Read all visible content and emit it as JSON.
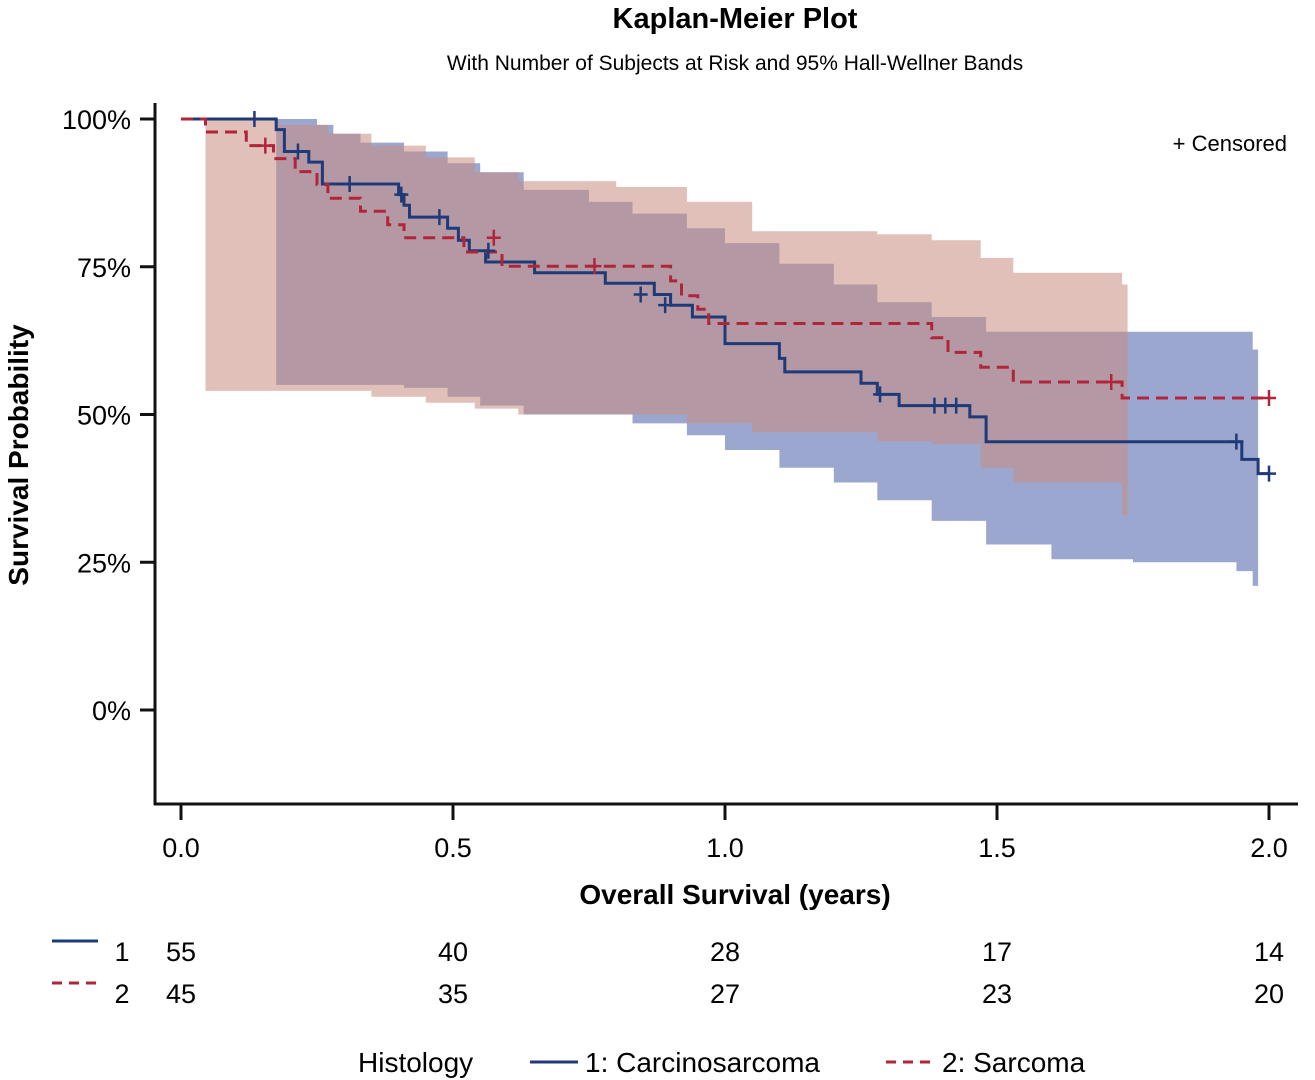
{
  "chart_data": {
    "type": "line",
    "title": "Kaplan-Meier Plot",
    "subtitle": "With Number of Subjects at Risk and 95% Hall-Wellner Bands",
    "xlabel": "Overall Survival (years)",
    "ylabel": "Survival Probability",
    "xlim": [
      -0.05,
      2.05
    ],
    "ylim": [
      -0.16,
      1.03
    ],
    "x_ticks": [
      {
        "value": 0.0,
        "label": "0.0"
      },
      {
        "value": 0.5,
        "label": "0.5"
      },
      {
        "value": 1.0,
        "label": "1.0"
      },
      {
        "value": 1.5,
        "label": "1.5"
      },
      {
        "value": 2.0,
        "label": "2.0"
      }
    ],
    "y_ticks": [
      {
        "value": 1.0,
        "label": "100%"
      },
      {
        "value": 0.75,
        "label": "75%"
      },
      {
        "value": 0.5,
        "label": "50%"
      },
      {
        "value": 0.25,
        "label": "25%"
      },
      {
        "value": 0.0,
        "label": "0%"
      }
    ],
    "censor_note": "+ Censored",
    "legend_title": "Histology",
    "series": [
      {
        "key": "1",
        "name": "1: Carcinosarcoma",
        "color": "#1f3a78",
        "dash": "solid",
        "band_color": "#4a5ea8",
        "steps": [
          [
            0,
            1.0
          ],
          [
            0.175,
            0.982
          ],
          [
            0.19,
            0.945
          ],
          [
            0.235,
            0.927
          ],
          [
            0.26,
            0.89
          ],
          [
            0.4,
            0.872
          ],
          [
            0.41,
            0.854
          ],
          [
            0.42,
            0.834
          ],
          [
            0.49,
            0.815
          ],
          [
            0.51,
            0.795
          ],
          [
            0.53,
            0.777
          ],
          [
            0.56,
            0.758
          ],
          [
            0.65,
            0.74
          ],
          [
            0.78,
            0.722
          ],
          [
            0.87,
            0.703
          ],
          [
            0.9,
            0.685
          ],
          [
            0.94,
            0.665
          ],
          [
            1.0,
            0.642
          ],
          [
            1.0,
            0.62
          ],
          [
            1.1,
            0.595
          ],
          [
            1.11,
            0.572
          ],
          [
            1.25,
            0.553
          ],
          [
            1.28,
            0.534
          ],
          [
            1.32,
            0.515
          ],
          [
            1.45,
            0.496
          ],
          [
            1.48,
            0.454
          ],
          [
            1.95,
            0.424
          ],
          [
            1.98,
            0.4
          ],
          [
            2.0,
            0.4
          ]
        ],
        "censored": [
          [
            0.135,
            1.0
          ],
          [
            0.215,
            0.945
          ],
          [
            0.31,
            0.89
          ],
          [
            0.405,
            0.872
          ],
          [
            0.475,
            0.834
          ],
          [
            0.565,
            0.777
          ],
          [
            0.845,
            0.703
          ],
          [
            0.89,
            0.685
          ],
          [
            1.285,
            0.534
          ],
          [
            1.385,
            0.515
          ],
          [
            1.405,
            0.515
          ],
          [
            1.425,
            0.515
          ],
          [
            1.94,
            0.454
          ],
          [
            2.0,
            0.4
          ]
        ],
        "band": [
          [
            0,
            1.0,
            1.0
          ],
          [
            0.175,
            0.55,
            1.0
          ],
          [
            0.2,
            0.55,
            1.0
          ],
          [
            0.25,
            0.55,
            0.99
          ],
          [
            0.28,
            0.55,
            0.975
          ],
          [
            0.33,
            0.55,
            0.96
          ],
          [
            0.41,
            0.545,
            0.945
          ],
          [
            0.49,
            0.53,
            0.925
          ],
          [
            0.55,
            0.515,
            0.91
          ],
          [
            0.63,
            0.5,
            0.88
          ],
          [
            0.75,
            0.5,
            0.86
          ],
          [
            0.83,
            0.485,
            0.84
          ],
          [
            0.93,
            0.465,
            0.815
          ],
          [
            1.0,
            0.44,
            0.79
          ],
          [
            1.1,
            0.41,
            0.755
          ],
          [
            1.2,
            0.385,
            0.72
          ],
          [
            1.28,
            0.355,
            0.69
          ],
          [
            1.38,
            0.32,
            0.665
          ],
          [
            1.48,
            0.28,
            0.64
          ],
          [
            1.6,
            0.255,
            0.64
          ],
          [
            1.75,
            0.25,
            0.64
          ],
          [
            1.94,
            0.235,
            0.64
          ],
          [
            1.97,
            0.21,
            0.61
          ],
          [
            1.98,
            0.19,
            0.6
          ]
        ]
      },
      {
        "key": "2",
        "name": "2: Sarcoma",
        "color": "#b1253a",
        "dash": "dashed",
        "band_color": "#c98c80",
        "steps": [
          [
            0,
            1.0
          ],
          [
            0.045,
            0.978
          ],
          [
            0.12,
            0.955
          ],
          [
            0.17,
            0.933
          ],
          [
            0.21,
            0.911
          ],
          [
            0.25,
            0.889
          ],
          [
            0.27,
            0.866
          ],
          [
            0.33,
            0.844
          ],
          [
            0.38,
            0.821
          ],
          [
            0.41,
            0.799
          ],
          [
            0.52,
            0.775
          ],
          [
            0.59,
            0.751
          ],
          [
            0.67,
            0.751
          ],
          [
            0.9,
            0.726
          ],
          [
            0.92,
            0.701
          ],
          [
            0.95,
            0.678
          ],
          [
            0.97,
            0.654
          ],
          [
            1.38,
            0.63
          ],
          [
            1.41,
            0.605
          ],
          [
            1.47,
            0.58
          ],
          [
            1.53,
            0.555
          ],
          [
            1.73,
            0.528
          ],
          [
            2.0,
            0.528
          ]
        ],
        "censored": [
          [
            0.155,
            0.955
          ],
          [
            0.575,
            0.799
          ],
          [
            0.76,
            0.751
          ],
          [
            1.71,
            0.555
          ],
          [
            2.0,
            0.528
          ]
        ],
        "band": [
          [
            0,
            1.0,
            1.0
          ],
          [
            0.045,
            0.54,
            1.0
          ],
          [
            0.18,
            0.54,
            0.99
          ],
          [
            0.27,
            0.54,
            0.975
          ],
          [
            0.35,
            0.53,
            0.955
          ],
          [
            0.45,
            0.52,
            0.935
          ],
          [
            0.54,
            0.51,
            0.91
          ],
          [
            0.62,
            0.5,
            0.895
          ],
          [
            0.8,
            0.5,
            0.885
          ],
          [
            0.93,
            0.485,
            0.86
          ],
          [
            1.05,
            0.47,
            0.81
          ],
          [
            1.28,
            0.455,
            0.805
          ],
          [
            1.38,
            0.45,
            0.795
          ],
          [
            1.47,
            0.41,
            0.765
          ],
          [
            1.53,
            0.385,
            0.74
          ],
          [
            1.73,
            0.33,
            0.72
          ],
          [
            1.74,
            0.31,
            0.72
          ]
        ]
      }
    ],
    "risk_table": {
      "times": [
        0.0,
        0.5,
        1.0,
        1.5,
        2.0
      ],
      "rows": [
        {
          "key": "1",
          "counts": [
            "55",
            "40",
            "28",
            "17",
            "14"
          ]
        },
        {
          "key": "2",
          "counts": [
            "45",
            "35",
            "27",
            "23",
            "20"
          ]
        }
      ]
    }
  }
}
